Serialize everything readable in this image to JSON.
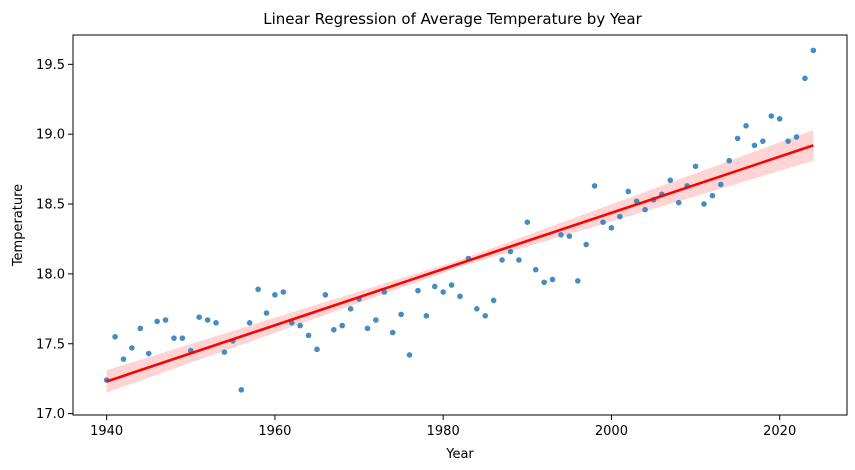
{
  "chart_data": {
    "type": "scatter",
    "title": "Linear Regression of Average Temperature by Year",
    "xlabel": "Year",
    "ylabel": "Temperature",
    "xlim": [
      1936,
      2028
    ],
    "ylim": [
      16.99,
      19.71
    ],
    "x_ticks": [
      1940,
      1960,
      1980,
      2000,
      2020
    ],
    "y_ticks": [
      17.0,
      17.5,
      18.0,
      18.5,
      19.0,
      19.5
    ],
    "x_tick_labels": [
      "1940",
      "1960",
      "1980",
      "2000",
      "2020"
    ],
    "y_tick_labels": [
      "17.0",
      "17.5",
      "18.0",
      "18.5",
      "19.0",
      "19.5"
    ],
    "grid": false,
    "legend": "none",
    "colors": {
      "points": "#3a86bf",
      "line": "#ff0000",
      "band": "#ffcccc"
    },
    "series": [
      {
        "values": [
          [
            1940,
            17.24
          ],
          [
            1941,
            17.55
          ],
          [
            1942,
            17.39
          ],
          [
            1943,
            17.47
          ],
          [
            1944,
            17.61
          ],
          [
            1945,
            17.43
          ],
          [
            1946,
            17.66
          ],
          [
            1947,
            17.67
          ],
          [
            1948,
            17.54
          ],
          [
            1949,
            17.54
          ],
          [
            1950,
            17.45
          ],
          [
            1951,
            17.69
          ],
          [
            1952,
            17.67
          ],
          [
            1953,
            17.65
          ],
          [
            1954,
            17.44
          ],
          [
            1955,
            17.52
          ],
          [
            1956,
            17.17
          ],
          [
            1957,
            17.65
          ],
          [
            1958,
            17.89
          ],
          [
            1959,
            17.72
          ],
          [
            1960,
            17.85
          ],
          [
            1961,
            17.87
          ],
          [
            1962,
            17.65
          ],
          [
            1963,
            17.63
          ],
          [
            1964,
            17.56
          ],
          [
            1965,
            17.46
          ],
          [
            1966,
            17.85
          ],
          [
            1967,
            17.6
          ],
          [
            1968,
            17.63
          ],
          [
            1969,
            17.75
          ],
          [
            1970,
            17.82
          ],
          [
            1971,
            17.61
          ],
          [
            1972,
            17.67
          ],
          [
            1973,
            17.87
          ],
          [
            1974,
            17.58
          ],
          [
            1975,
            17.71
          ],
          [
            1976,
            17.42
          ],
          [
            1977,
            17.88
          ],
          [
            1978,
            17.7
          ],
          [
            1979,
            17.91
          ],
          [
            1980,
            17.87
          ],
          [
            1981,
            17.92
          ],
          [
            1982,
            17.84
          ],
          [
            1983,
            18.11
          ],
          [
            1984,
            17.75
          ],
          [
            1985,
            17.7
          ],
          [
            1986,
            17.81
          ],
          [
            1987,
            18.1
          ],
          [
            1988,
            18.16
          ],
          [
            1989,
            18.1
          ],
          [
            1990,
            18.37
          ],
          [
            1991,
            18.03
          ],
          [
            1992,
            17.94
          ],
          [
            1993,
            17.96
          ],
          [
            1994,
            18.28
          ],
          [
            1995,
            18.27
          ],
          [
            1996,
            17.95
          ],
          [
            1997,
            18.21
          ],
          [
            1998,
            18.63
          ],
          [
            1999,
            18.37
          ],
          [
            2000,
            18.33
          ],
          [
            2001,
            18.41
          ],
          [
            2002,
            18.59
          ],
          [
            2003,
            18.52
          ],
          [
            2004,
            18.46
          ],
          [
            2005,
            18.53
          ],
          [
            2006,
            18.57
          ],
          [
            2007,
            18.67
          ],
          [
            2008,
            18.51
          ],
          [
            2009,
            18.63
          ],
          [
            2010,
            18.77
          ],
          [
            2011,
            18.5
          ],
          [
            2012,
            18.56
          ],
          [
            2013,
            18.64
          ],
          [
            2014,
            18.81
          ],
          [
            2015,
            18.97
          ],
          [
            2016,
            19.06
          ],
          [
            2017,
            18.92
          ],
          [
            2018,
            18.95
          ],
          [
            2019,
            19.13
          ],
          [
            2020,
            19.11
          ],
          [
            2021,
            18.95
          ],
          [
            2022,
            18.98
          ],
          [
            2023,
            19.4
          ],
          [
            2024,
            19.6
          ]
        ]
      }
    ],
    "regression": {
      "x_range": [
        1940,
        2024
      ],
      "line": [
        [
          1940,
          17.23
        ],
        [
          2024,
          18.92
        ]
      ],
      "ci_lower": [
        [
          1940,
          17.15
        ],
        [
          1982,
          18.05
        ],
        [
          2024,
          18.81
        ]
      ],
      "ci_upper": [
        [
          1940,
          17.31
        ],
        [
          1982,
          18.1
        ],
        [
          2024,
          19.03
        ]
      ]
    }
  }
}
